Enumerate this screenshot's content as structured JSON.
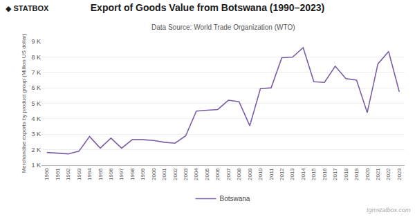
{
  "chart_data": {
    "type": "line",
    "title": "Export of Goods Value from Botswana (1990–2023)",
    "subtitle": "Data Source: World Trade Organization (WTO)",
    "ylabel": "Merchandise exports by product group (Million US dollar)",
    "annotations": [
      "◆ STATBOX",
      "tgmstatbox.com"
    ],
    "x": [
      1990,
      1991,
      1992,
      1993,
      1994,
      1995,
      1996,
      1997,
      1998,
      1999,
      2000,
      2001,
      2002,
      2003,
      2004,
      2005,
      2006,
      2007,
      2008,
      2009,
      2010,
      2011,
      2012,
      2013,
      2014,
      2015,
      2016,
      2017,
      2018,
      2019,
      2020,
      2021,
      2022,
      2023
    ],
    "series": [
      {
        "name": "Botswana",
        "color": "#7B5EA7",
        "values": [
          1820,
          1780,
          1730,
          1900,
          2850,
          2100,
          2750,
          2100,
          2650,
          2650,
          2600,
          2480,
          2420,
          2900,
          4500,
          4550,
          4600,
          5200,
          5100,
          3550,
          5950,
          6000,
          7950,
          7980,
          8600,
          6400,
          6350,
          7400,
          6600,
          6500,
          4400,
          7550,
          8350,
          5750
        ]
      }
    ],
    "xlim": [
      1989.5,
      2023.5
    ],
    "xticks": [
      1990,
      1991,
      1992,
      1993,
      1994,
      1995,
      1996,
      1997,
      1998,
      1999,
      2000,
      2001,
      2002,
      2003,
      2004,
      2005,
      2006,
      2007,
      2008,
      2009,
      2010,
      2011,
      2012,
      2013,
      2014,
      2015,
      2016,
      2017,
      2018,
      2019,
      2020,
      2021,
      2022,
      2023
    ],
    "ylim": [
      1000,
      9000
    ],
    "yticks": [
      {
        "value": 1000,
        "label": "1 K"
      },
      {
        "value": 2000,
        "label": "2 K"
      },
      {
        "value": 3000,
        "label": "3 K"
      },
      {
        "value": 4000,
        "label": "4 K"
      },
      {
        "value": 5000,
        "label": "5 K"
      },
      {
        "value": 6000,
        "label": "6 K"
      },
      {
        "value": 7000,
        "label": "7 K"
      },
      {
        "value": 8000,
        "label": "8 K"
      },
      {
        "value": 9000,
        "label": "9 K"
      }
    ],
    "grid": "y",
    "legend": "bottom"
  }
}
